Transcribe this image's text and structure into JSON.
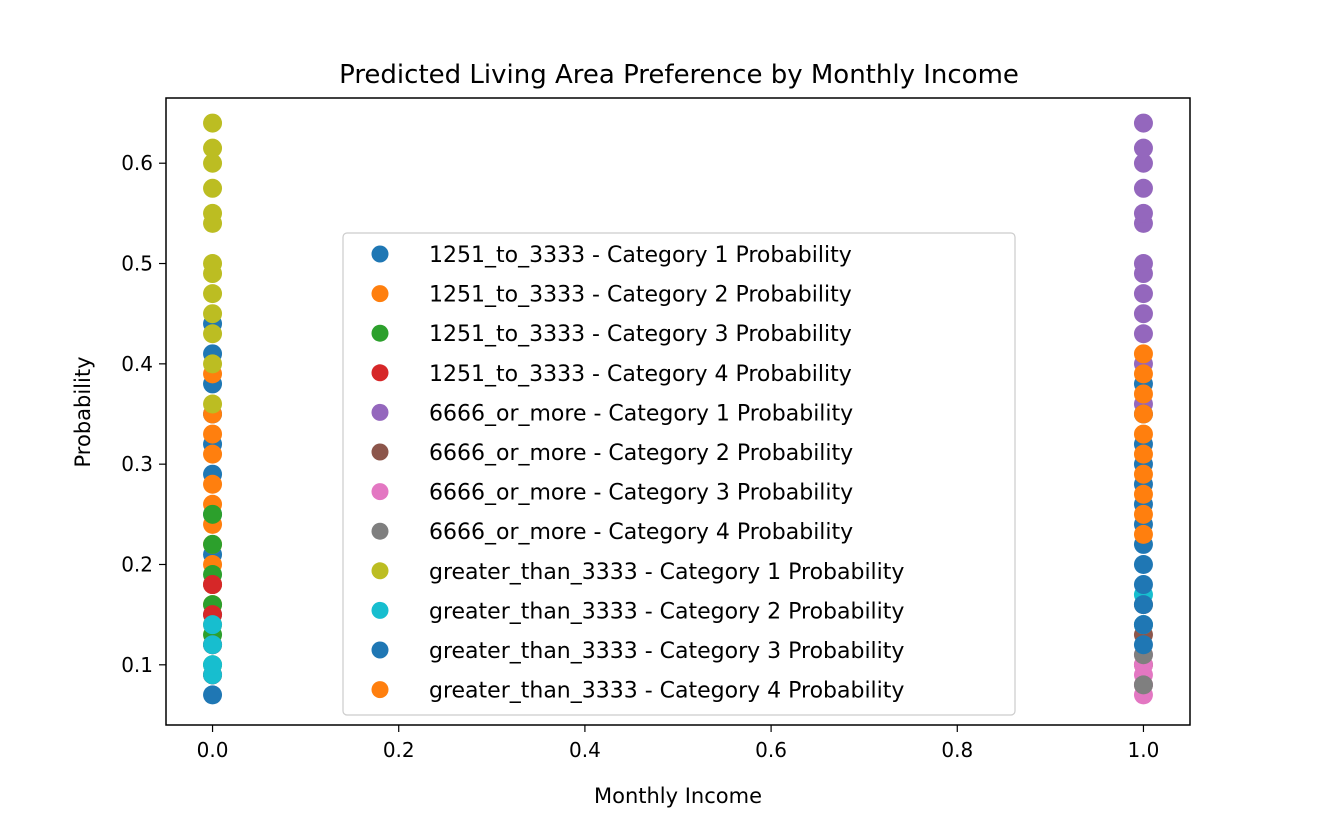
{
  "chart_data": {
    "type": "scatter",
    "title": "Predicted Living Area Preference by Monthly Income",
    "xlabel": "Monthly Income",
    "ylabel": "Probability",
    "xlim": [
      -0.05,
      1.05
    ],
    "ylim": [
      0.04,
      0.665
    ],
    "xticks": [
      "0.0",
      "0.2",
      "0.4",
      "0.6",
      "0.8",
      "1.0"
    ],
    "yticks": [
      "0.1",
      "0.2",
      "0.3",
      "0.4",
      "0.5",
      "0.6"
    ],
    "grid": false,
    "legend_position": "center",
    "series": [
      {
        "name": "1251_to_3333 - Category 1 Probability",
        "color": "#1f77b4",
        "points": [
          [
            0,
            0.07
          ],
          [
            0,
            0.09
          ],
          [
            0,
            0.12
          ],
          [
            0,
            0.15
          ],
          [
            0,
            0.18
          ],
          [
            0,
            0.21
          ],
          [
            0,
            0.25
          ],
          [
            0,
            0.29
          ],
          [
            0,
            0.32
          ],
          [
            0,
            0.35
          ],
          [
            0,
            0.38
          ],
          [
            0,
            0.41
          ],
          [
            0,
            0.44
          ]
        ]
      },
      {
        "name": "1251_to_3333 - Category 2 Probability",
        "color": "#ff7f0e",
        "points": [
          [
            0,
            0.14
          ],
          [
            0,
            0.16
          ],
          [
            0,
            0.18
          ],
          [
            0,
            0.2
          ],
          [
            0,
            0.22
          ],
          [
            0,
            0.24
          ],
          [
            0,
            0.26
          ],
          [
            0,
            0.28
          ],
          [
            0,
            0.31
          ],
          [
            0,
            0.33
          ],
          [
            0,
            0.35
          ],
          [
            0,
            0.39
          ]
        ]
      },
      {
        "name": "1251_to_3333 - Category 3 Probability",
        "color": "#2ca02c",
        "points": [
          [
            0,
            0.1
          ],
          [
            0,
            0.13
          ],
          [
            0,
            0.16
          ],
          [
            0,
            0.19
          ],
          [
            0,
            0.22
          ],
          [
            0,
            0.25
          ]
        ]
      },
      {
        "name": "1251_to_3333 - Category 4 Probability",
        "color": "#d62728",
        "points": [
          [
            0,
            0.09
          ],
          [
            0,
            0.12
          ],
          [
            0,
            0.15
          ],
          [
            0,
            0.18
          ]
        ]
      },
      {
        "name": "6666_or_more - Category 1 Probability",
        "color": "#9467bd",
        "points": [
          [
            1,
            0.36
          ],
          [
            1,
            0.4
          ],
          [
            1,
            0.43
          ],
          [
            1,
            0.45
          ],
          [
            1,
            0.47
          ],
          [
            1,
            0.49
          ],
          [
            1,
            0.5
          ],
          [
            1,
            0.54
          ],
          [
            1,
            0.55
          ],
          [
            1,
            0.575
          ],
          [
            1,
            0.6
          ],
          [
            1,
            0.615
          ],
          [
            1,
            0.64
          ]
        ]
      },
      {
        "name": "6666_or_more - Category 2 Probability",
        "color": "#8c564b",
        "points": [
          [
            1,
            0.08
          ],
          [
            1,
            0.1
          ],
          [
            1,
            0.13
          ],
          [
            1,
            0.16
          ]
        ]
      },
      {
        "name": "6666_or_more - Category 3 Probability",
        "color": "#e377c2",
        "points": [
          [
            1,
            0.07
          ],
          [
            1,
            0.08
          ],
          [
            1,
            0.09
          ],
          [
            1,
            0.1
          ],
          [
            1,
            0.11
          ]
        ]
      },
      {
        "name": "6666_or_more - Category 4 Probability",
        "color": "#7f7f7f",
        "points": [
          [
            1,
            0.08
          ],
          [
            1,
            0.11
          ],
          [
            1,
            0.14
          ]
        ]
      },
      {
        "name": "greater_than_3333 - Category 1 Probability",
        "color": "#bcbd22",
        "points": [
          [
            0,
            0.36
          ],
          [
            0,
            0.4
          ],
          [
            0,
            0.43
          ],
          [
            0,
            0.45
          ],
          [
            0,
            0.47
          ],
          [
            0,
            0.49
          ],
          [
            0,
            0.5
          ],
          [
            0,
            0.54
          ],
          [
            0,
            0.55
          ],
          [
            0,
            0.575
          ],
          [
            0,
            0.6
          ],
          [
            0,
            0.615
          ],
          [
            0,
            0.64
          ]
        ]
      },
      {
        "name": "greater_than_3333 - Category 2 Probability",
        "color": "#17becf",
        "points": [
          [
            0,
            0.09
          ],
          [
            0,
            0.1
          ],
          [
            0,
            0.12
          ],
          [
            0,
            0.14
          ],
          [
            1,
            0.14
          ],
          [
            1,
            0.17
          ]
        ]
      },
      {
        "name": "greater_than_3333 - Category 3 Probability",
        "color": "#1f77b4",
        "points": [
          [
            1,
            0.12
          ],
          [
            1,
            0.14
          ],
          [
            1,
            0.16
          ],
          [
            1,
            0.18
          ],
          [
            1,
            0.2
          ],
          [
            1,
            0.22
          ],
          [
            1,
            0.24
          ],
          [
            1,
            0.26
          ],
          [
            1,
            0.28
          ],
          [
            1,
            0.3
          ],
          [
            1,
            0.32
          ],
          [
            1,
            0.35
          ],
          [
            1,
            0.38
          ]
        ]
      },
      {
        "name": "greater_than_3333 - Category 4 Probability",
        "color": "#ff7f0e",
        "points": [
          [
            1,
            0.23
          ],
          [
            1,
            0.25
          ],
          [
            1,
            0.27
          ],
          [
            1,
            0.29
          ],
          [
            1,
            0.31
          ],
          [
            1,
            0.33
          ],
          [
            1,
            0.35
          ],
          [
            1,
            0.37
          ],
          [
            1,
            0.39
          ],
          [
            1,
            0.41
          ]
        ]
      }
    ]
  }
}
